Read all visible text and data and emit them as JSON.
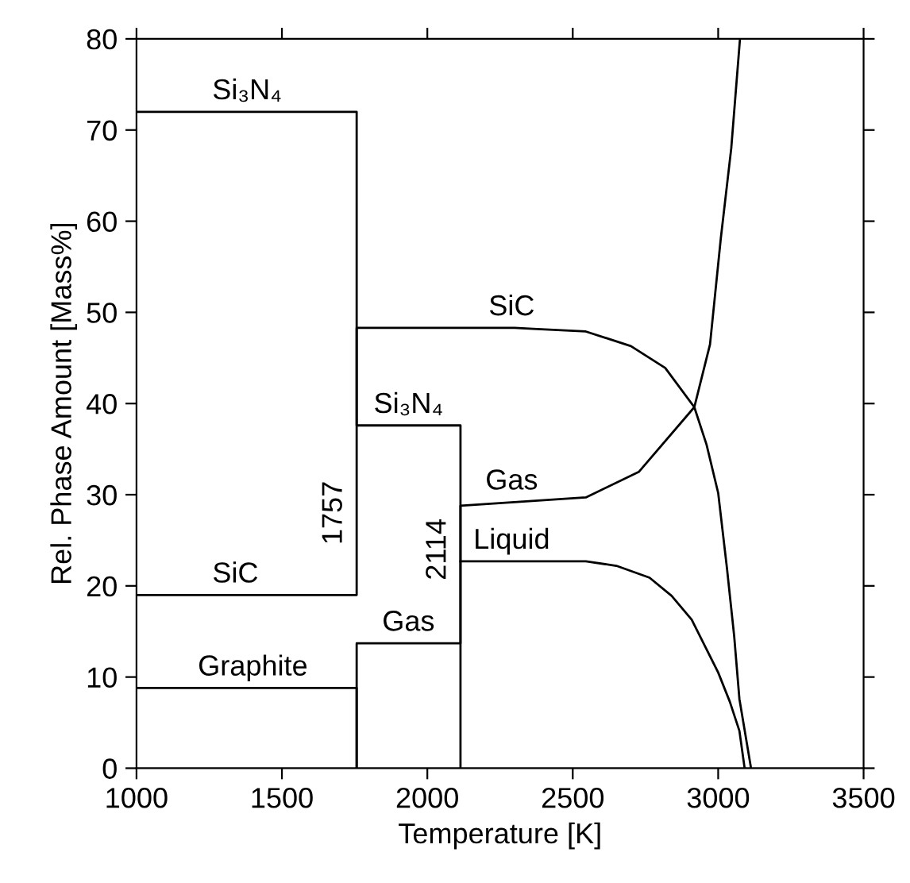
{
  "chart_data": {
    "type": "line",
    "xlabel": "Temperature [K]",
    "ylabel": "Rel. Phase Amount [Mass%]",
    "xlim": [
      1000,
      3500
    ],
    "xticks": [
      1000,
      1500,
      2000,
      2500,
      3000,
      3500
    ],
    "ylim": [
      0,
      80
    ],
    "yticks": [
      0,
      10,
      20,
      30,
      40,
      50,
      60,
      70,
      80
    ],
    "grid": false,
    "legend": false,
    "marker": "none",
    "line_style": "solid",
    "series": [
      {
        "color": "#000000",
        "x": [
          1000,
          1757,
          1757,
          2114,
          2114
        ],
        "values": [
          72,
          72,
          37.6,
          37.6,
          0
        ]
      },
      {
        "color": "#000000",
        "x": [
          1000,
          1757,
          1757,
          2114,
          2300,
          2364,
          2545,
          2700,
          2818,
          2918,
          2960,
          3000,
          3030,
          3055,
          3073,
          3113
        ],
        "values": [
          19,
          19,
          48.3,
          48.3,
          48.3,
          48.2,
          47.9,
          46.3,
          43.9,
          39.6,
          35.5,
          30.2,
          22,
          14.5,
          7.6,
          0
        ]
      },
      {
        "color": "#000000",
        "x": [
          1000,
          1757,
          1757
        ],
        "values": [
          8.8,
          8.8,
          0
        ]
      },
      {
        "color": "#000000",
        "x": [
          1757,
          1757,
          2114,
          2114,
          2545,
          2727,
          2918,
          2972,
          3009,
          3045,
          3075
        ],
        "values": [
          0,
          13.7,
          13.7,
          28.8,
          29.7,
          32.5,
          39.6,
          46.5,
          58.1,
          68,
          80
        ]
      },
      {
        "color": "#000000",
        "x": [
          2114,
          2545,
          2650,
          2764,
          2840,
          2909,
          3000,
          3040,
          3073,
          3091
        ],
        "values": [
          22.7,
          22.7,
          22.2,
          20.9,
          18.9,
          16.3,
          10.5,
          7.3,
          4.1,
          0
        ]
      }
    ],
    "annotations": [
      {
        "text": "Si₃N₄",
        "x": 1380,
        "y": 72
      },
      {
        "text": "SiC",
        "x": 1340,
        "y": 19
      },
      {
        "text": "Graphite",
        "x": 1400,
        "y": 8.8
      },
      {
        "text": "Gas",
        "x": 1935,
        "y": 13.7
      },
      {
        "text": "Si₃N₄",
        "x": 1935,
        "y": 37.6
      },
      {
        "text": "SiC",
        "x": 2290,
        "y": 48.3
      },
      {
        "text": "Gas",
        "x": 2290,
        "y": 29.2
      },
      {
        "text": "Liquid",
        "x": 2290,
        "y": 22.7
      },
      {
        "text": "1757",
        "x": 1757,
        "y": 28
      },
      {
        "text": "2114",
        "x": 2114,
        "y": 24
      }
    ]
  }
}
